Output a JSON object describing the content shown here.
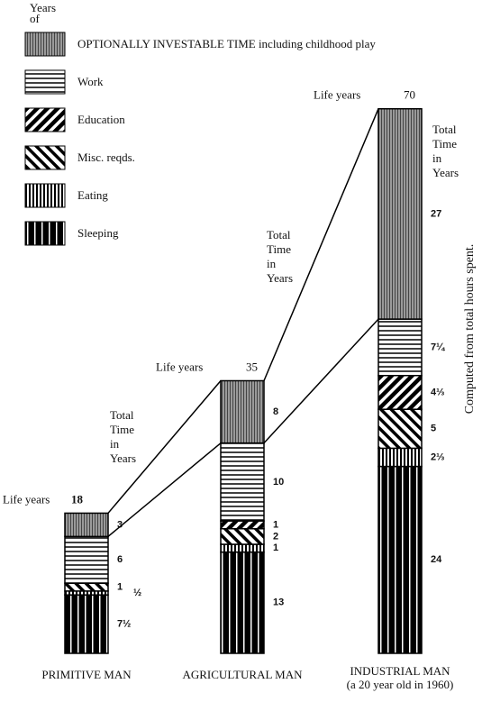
{
  "chart_data": {
    "type": "stacked-column",
    "axis_label_top": [
      "Years",
      "of"
    ],
    "categories": [
      "PRIMITIVE MAN",
      "AGRICULTURAL MAN",
      "INDUSTRIAL MAN"
    ],
    "category_notes": [
      null,
      null,
      "(a 20 year old in 1960)"
    ],
    "life_label": "Life years",
    "totals": [
      18,
      35,
      70
    ],
    "total_time_label": [
      "Total",
      "Time",
      "in",
      "Years"
    ],
    "side_note": "Computed from total hours spent.",
    "ylim": [
      0,
      70
    ],
    "series": [
      {
        "name": "OPTIONALLY INVESTABLE TIME including childhood play",
        "pattern": "optional",
        "color": "#000000",
        "values": [
          3,
          8,
          27
        ]
      },
      {
        "name": "Work",
        "pattern": "work",
        "color": "#000000",
        "values": [
          6,
          10,
          7.25
        ],
        "value_labels": [
          "6",
          "10",
          "7¼"
        ]
      },
      {
        "name": "Education",
        "pattern": "education",
        "color": "#000000",
        "values": [
          null,
          1,
          4.333
        ],
        "value_labels": [
          null,
          "1",
          "4⅓"
        ]
      },
      {
        "name": "Misc.  reqds.",
        "pattern": "misc",
        "color": "#000000",
        "values": [
          1,
          2,
          5
        ]
      },
      {
        "name": "Eating",
        "pattern": "eating",
        "color": "#000000",
        "values": [
          0.5,
          1,
          2.333
        ],
        "value_labels": [
          "½",
          "1",
          "2⅓"
        ]
      },
      {
        "name": "Sleeping",
        "pattern": "sleeping",
        "color": "#000000",
        "values": [
          7.5,
          13,
          24
        ],
        "value_labels": [
          "7½",
          "13",
          "24"
        ]
      }
    ]
  }
}
